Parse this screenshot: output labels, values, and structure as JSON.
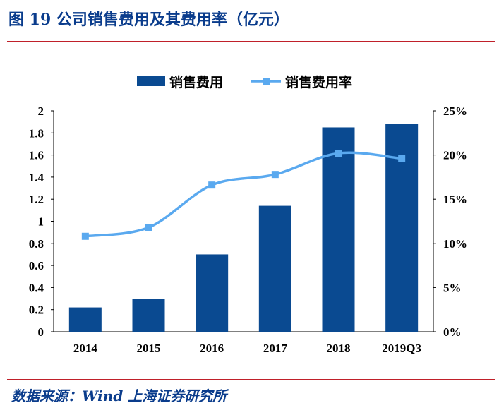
{
  "header": {
    "title": "图 19 公司销售费用及其费用率（亿元）"
  },
  "footer": {
    "source": "数据来源：Wind  上海证券研究所"
  },
  "chart_data": {
    "type": "bar",
    "categories": [
      "2014",
      "2015",
      "2016",
      "2017",
      "2018",
      "2019Q3"
    ],
    "series": [
      {
        "name": "销售费用",
        "type": "bar",
        "axis": "left",
        "color": "#0a4a91",
        "values": [
          0.22,
          0.3,
          0.7,
          1.14,
          1.85,
          1.88
        ]
      },
      {
        "name": "销售费用率",
        "type": "line",
        "axis": "right",
        "color": "#5aa9ef",
        "values": [
          10.8,
          11.8,
          16.6,
          17.8,
          20.2,
          19.6
        ]
      }
    ],
    "y_left": {
      "range": [
        0,
        2
      ],
      "ticks": [
        "0",
        "0.2",
        "0.4",
        "0.6",
        "0.8",
        "1",
        "1.2",
        "1.4",
        "1.6",
        "1.8",
        "2"
      ]
    },
    "y_right": {
      "range": [
        0,
        25
      ],
      "ticks": [
        "0%",
        "5%",
        "10%",
        "15%",
        "20%",
        "25%"
      ]
    },
    "legend_position": "top-center",
    "grid": false
  }
}
